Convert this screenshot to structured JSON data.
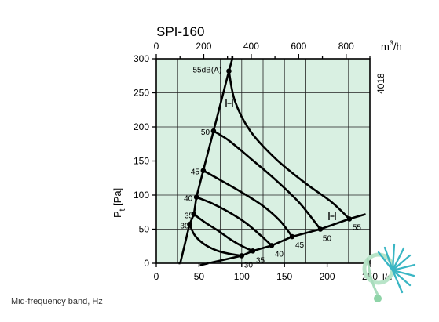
{
  "caption": "Mid-frequency band, Hz",
  "figure_code": "4018",
  "chart_data": {
    "type": "line",
    "title": "SPI-160",
    "ylabel_main": "P",
    "ylabel_sub": "t",
    "ylabel_unit": " [Pa]",
    "x_bottom_unit": "l/s",
    "x_top_unit_base": "m",
    "x_top_unit_exp": "3",
    "x_top_unit_tail": "/h",
    "x_range": [
      0,
      250
    ],
    "y_range": [
      0,
      300
    ],
    "x_ticks": [
      "0",
      "50",
      "100",
      "150",
      "200",
      "250"
    ],
    "x_tick_values": [
      0,
      50,
      100,
      150,
      200,
      250
    ],
    "x_top_ticks": [
      "0",
      "200",
      "400",
      "600",
      "800"
    ],
    "x_top_tick_values": [
      0,
      200,
      400,
      600,
      800
    ],
    "y_ticks": [
      "0",
      "50",
      "100",
      "150",
      "200",
      "250",
      "300"
    ],
    "y_tick_values": [
      0,
      50,
      100,
      150,
      200,
      250,
      300
    ],
    "grid": true,
    "background": "#d9f0e2",
    "line_color": "#000000",
    "closed_line": {
      "label": "I+I",
      "points": [
        [
          28,
          0
        ],
        [
          39,
          57
        ],
        [
          44,
          72
        ],
        [
          47,
          97
        ],
        [
          55,
          136
        ],
        [
          67,
          194
        ],
        [
          85,
          282
        ],
        [
          89,
          300
        ]
      ]
    },
    "open_line": {
      "label": "I+I",
      "points": [
        [
          61,
          0
        ],
        [
          100,
          11
        ],
        [
          113,
          18
        ],
        [
          135,
          26
        ],
        [
          159,
          39
        ],
        [
          192,
          50
        ],
        [
          226,
          65
        ],
        [
          245,
          72
        ]
      ]
    },
    "curves": [
      {
        "name": "30",
        "points": [
          [
            39,
            57
          ],
          [
            45,
            41
          ],
          [
            56,
            28
          ],
          [
            70,
            19
          ],
          [
            85,
            14
          ],
          [
            100,
            11
          ]
        ]
      },
      {
        "name": "35",
        "points": [
          [
            44,
            72
          ],
          [
            57,
            60
          ],
          [
            72,
            48
          ],
          [
            88,
            34
          ],
          [
            102,
            24
          ],
          [
            113,
            18
          ]
        ]
      },
      {
        "name": "40",
        "points": [
          [
            47,
            97
          ],
          [
            65,
            88
          ],
          [
            85,
            75
          ],
          [
            105,
            59
          ],
          [
            122,
            41
          ],
          [
            135,
            26
          ]
        ]
      },
      {
        "name": "45",
        "points": [
          [
            55,
            136
          ],
          [
            75,
            122
          ],
          [
            100,
            104
          ],
          [
            125,
            84
          ],
          [
            145,
            62
          ],
          [
            159,
            39
          ]
        ]
      },
      {
        "name": "50",
        "points": [
          [
            67,
            194
          ],
          [
            85,
            180
          ],
          [
            110,
            154
          ],
          [
            140,
            122
          ],
          [
            168,
            88
          ],
          [
            192,
            50
          ]
        ]
      },
      {
        "name": "55dB(A)",
        "points": [
          [
            85,
            282
          ],
          [
            92,
            238
          ],
          [
            110,
            194
          ],
          [
            140,
            153
          ],
          [
            175,
            117
          ],
          [
            205,
            90
          ],
          [
            226,
            65
          ]
        ]
      }
    ],
    "closed_labels": [
      "30",
      "35",
      "40",
      "45",
      "50",
      "55dB(A)"
    ],
    "open_labels": [
      "30",
      "35",
      "40",
      "45",
      "50",
      "55"
    ]
  }
}
